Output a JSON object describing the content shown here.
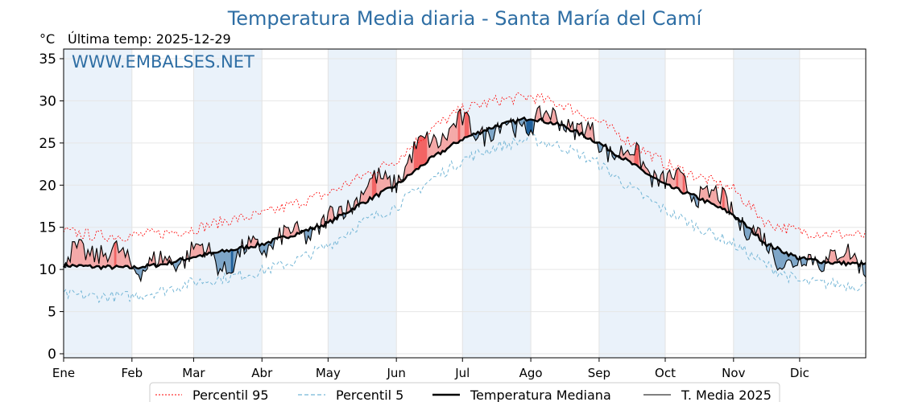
{
  "header": {
    "title": "Temperatura Media diaria - Santa María del Camí",
    "unit": "°C",
    "last_temp": "Última temp: 2025-12-29",
    "watermark": "WWW.EMBALSES.NET"
  },
  "legend": {
    "p95": "Percentil 95",
    "p5": "Percentil 5",
    "median": "Temperatura Mediana",
    "media": "T. Media 2025"
  },
  "colors": {
    "title": "#2e6ea4",
    "watermark": "#2e6ea4",
    "p95": "#ff0000",
    "p5": "#74b6d6",
    "median": "#000000",
    "media": "#000000",
    "above_fill": "#f4a9a8",
    "above_extreme_fill": "#f26464",
    "below_fill": "#7ea6c8",
    "below_extreme_fill": "#1f5f9a",
    "band": "#eaf2fa"
  },
  "chart_data": {
    "type": "line",
    "title": "Temperatura Media diaria - Santa María del Camí",
    "ylabel": "°C",
    "ylim": [
      0,
      36
    ],
    "yticks": [
      0,
      5,
      10,
      15,
      20,
      25,
      30,
      35
    ],
    "months": [
      "Ene",
      "Feb",
      "Mar",
      "Abr",
      "May",
      "Jun",
      "Jul",
      "Ago",
      "Sep",
      "Oct",
      "Nov",
      "Dic"
    ],
    "month_start_days": [
      1,
      32,
      60,
      91,
      121,
      152,
      182,
      213,
      244,
      274,
      305,
      335
    ],
    "days_in_year": 365,
    "legend_position": "bottom",
    "grid": true,
    "anchor_days": [
      1,
      16,
      32,
      46,
      60,
      75,
      91,
      106,
      121,
      136,
      152,
      167,
      182,
      197,
      213,
      228,
      244,
      259,
      274,
      289,
      305,
      320,
      335,
      350,
      365
    ],
    "median_anchor": [
      10.5,
      10.3,
      10.2,
      10.6,
      11.5,
      12.2,
      13.0,
      14.2,
      15.5,
      17.8,
      20.0,
      23.0,
      25.5,
      27.0,
      28.0,
      27.0,
      25.0,
      22.5,
      20.0,
      18.5,
      16.5,
      13.0,
      11.3,
      10.8,
      10.6
    ],
    "p95_anchor": [
      14.5,
      14.0,
      14.0,
      14.3,
      14.8,
      15.8,
      16.5,
      17.8,
      19.0,
      21.0,
      23.0,
      26.5,
      29.0,
      30.0,
      30.5,
      29.5,
      27.5,
      25.0,
      22.5,
      21.0,
      19.5,
      15.5,
      14.5,
      14.2,
      14.0
    ],
    "p5_anchor": [
      7.0,
      6.8,
      6.8,
      7.5,
      8.5,
      9.0,
      9.8,
      11.0,
      12.8,
      15.5,
      17.5,
      20.5,
      23.0,
      24.5,
      25.5,
      24.5,
      22.5,
      19.5,
      17.0,
      15.0,
      13.0,
      10.5,
      8.5,
      8.3,
      8.0
    ],
    "media_2025_anchor": [
      11.0,
      12.5,
      10.8,
      10.5,
      12.5,
      10.5,
      13.0,
      14.0,
      15.5,
      19.5,
      21.0,
      25.5,
      27.0,
      26.5,
      27.5,
      28.0,
      25.0,
      23.5,
      20.5,
      19.5,
      17.0,
      12.5,
      10.5,
      12.0,
      10.5
    ]
  }
}
